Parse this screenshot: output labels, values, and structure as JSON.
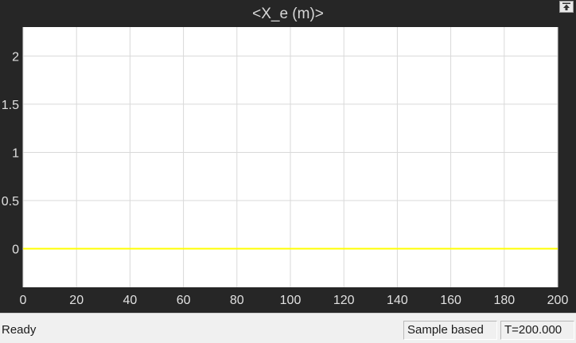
{
  "scope": {
    "title": "<X_e (m)>"
  },
  "status_bar": {
    "status": "Ready",
    "sample_mode": "Sample based",
    "time": "T=200.000"
  },
  "colors": {
    "background": "#262626",
    "plot_background": "#ffffff",
    "grid": "#d9d9d9",
    "signal": "#ffff00"
  },
  "icons": {
    "undock": "undock-icon"
  },
  "chart_data": {
    "type": "line",
    "title": "<X_e (m)>",
    "xlabel": "",
    "ylabel": "",
    "xlim": [
      0,
      200
    ],
    "ylim": [
      -0.4,
      2.3
    ],
    "x_ticks": [
      0,
      20,
      40,
      60,
      80,
      100,
      120,
      140,
      160,
      180,
      200
    ],
    "y_ticks": [
      0,
      0.5,
      1,
      1.5,
      2
    ],
    "grid": true,
    "series": [
      {
        "color": "#ffff00",
        "x": [
          0,
          200
        ],
        "y": [
          0,
          0
        ]
      }
    ]
  }
}
